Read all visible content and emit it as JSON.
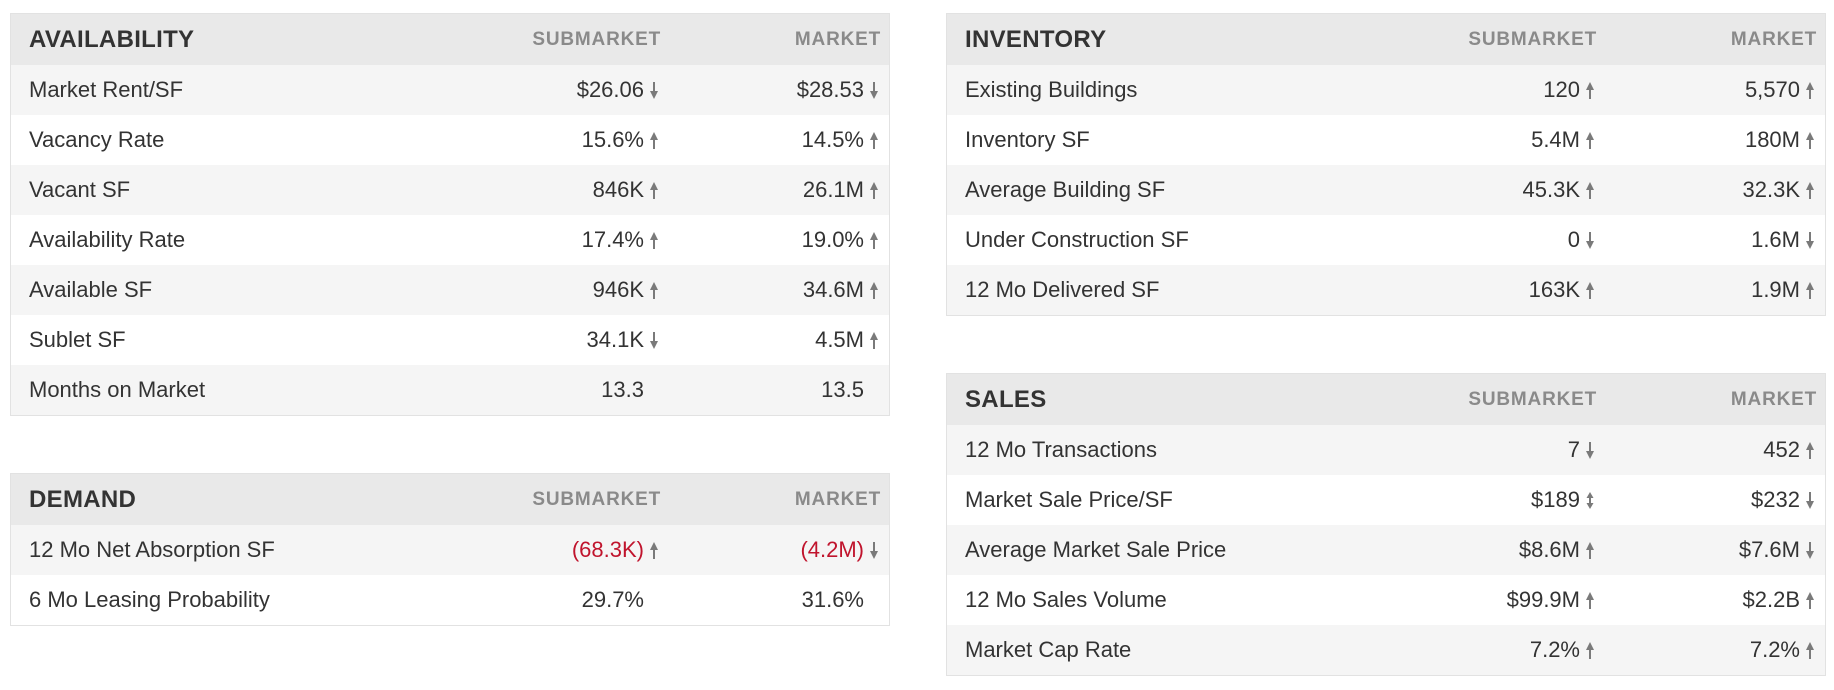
{
  "colors": {
    "header_bg": "#e9e9e9",
    "row_alt_bg": "#f5f5f5",
    "negative": "#c0142d",
    "arrow": "#7a7a7a"
  },
  "availability": {
    "title": "AVAILABILITY",
    "col_sub": "SUBMARKET",
    "col_mkt": "MARKET",
    "rows": [
      {
        "label": "Market Rent/SF",
        "sub": "$26.06",
        "sub_dir": "down",
        "mkt": "$28.53",
        "mkt_dir": "down"
      },
      {
        "label": "Vacancy Rate",
        "sub": "15.6%",
        "sub_dir": "up",
        "mkt": "14.5%",
        "mkt_dir": "up"
      },
      {
        "label": "Vacant SF",
        "sub": "846K",
        "sub_dir": "up",
        "mkt": "26.1M",
        "mkt_dir": "up"
      },
      {
        "label": "Availability Rate",
        "sub": "17.4%",
        "sub_dir": "up",
        "mkt": "19.0%",
        "mkt_dir": "up"
      },
      {
        "label": "Available SF",
        "sub": "946K",
        "sub_dir": "up",
        "mkt": "34.6M",
        "mkt_dir": "up"
      },
      {
        "label": "Sublet SF",
        "sub": "34.1K",
        "sub_dir": "down",
        "mkt": "4.5M",
        "mkt_dir": "up"
      },
      {
        "label": "Months on Market",
        "sub": "13.3",
        "sub_dir": "none",
        "mkt": "13.5",
        "mkt_dir": "none"
      }
    ]
  },
  "demand": {
    "title": "DEMAND",
    "col_sub": "SUBMARKET",
    "col_mkt": "MARKET",
    "rows": [
      {
        "label": "12 Mo Net Absorption SF",
        "sub": "(68.3K)",
        "sub_dir": "up",
        "mkt": "(4.2M)",
        "mkt_dir": "down"
      },
      {
        "label": "6 Mo Leasing Probability",
        "sub": "29.7%",
        "sub_dir": "none",
        "mkt": "31.6%",
        "mkt_dir": "none"
      }
    ]
  },
  "inventory": {
    "title": "INVENTORY",
    "col_sub": "SUBMARKET",
    "col_mkt": "MARKET",
    "rows": [
      {
        "label": "Existing Buildings",
        "sub": "120",
        "sub_dir": "up",
        "mkt": "5,570",
        "mkt_dir": "up"
      },
      {
        "label": "Inventory SF",
        "sub": "5.4M",
        "sub_dir": "up",
        "mkt": "180M",
        "mkt_dir": "up"
      },
      {
        "label": "Average Building SF",
        "sub": "45.3K",
        "sub_dir": "up",
        "mkt": "32.3K",
        "mkt_dir": "up"
      },
      {
        "label": "Under Construction SF",
        "sub": "0",
        "sub_dir": "down",
        "mkt": "1.6M",
        "mkt_dir": "down"
      },
      {
        "label": "12 Mo Delivered SF",
        "sub": "163K",
        "sub_dir": "up",
        "mkt": "1.9M",
        "mkt_dir": "up"
      }
    ]
  },
  "sales": {
    "title": "SALES",
    "col_sub": "SUBMARKET",
    "col_mkt": "MARKET",
    "rows": [
      {
        "label": "12 Mo Transactions",
        "sub": "7",
        "sub_dir": "down",
        "mkt": "452",
        "mkt_dir": "up"
      },
      {
        "label": "Market Sale Price/SF",
        "sub": "$189",
        "sub_dir": "both",
        "mkt": "$232",
        "mkt_dir": "down"
      },
      {
        "label": "Average Market Sale Price",
        "sub": "$8.6M",
        "sub_dir": "up",
        "mkt": "$7.6M",
        "mkt_dir": "down"
      },
      {
        "label": "12 Mo Sales Volume",
        "sub": "$99.9M",
        "sub_dir": "up",
        "mkt": "$2.2B",
        "mkt_dir": "up"
      },
      {
        "label": "Market Cap Rate",
        "sub": "7.2%",
        "sub_dir": "up",
        "mkt": "7.2%",
        "mkt_dir": "up"
      }
    ]
  }
}
